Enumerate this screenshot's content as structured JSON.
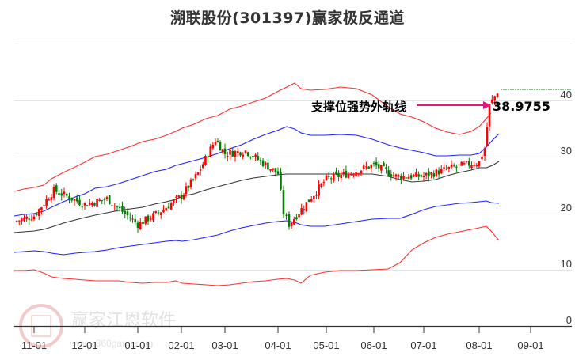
{
  "title": "溯联股份(301397)赢家极反通道",
  "colors": {
    "up": "#ff0000",
    "down": "#008000",
    "outer_band": "#ff0000",
    "inner_band": "#0000ff",
    "middle_line": "#000000",
    "annotation_arrow": "#e0197d",
    "grid": "#dddddd",
    "reference_line": "#008000"
  },
  "annotation": {
    "label": "支撑位强势外轨线",
    "value": "38.9755"
  },
  "watermark": {
    "brand": "赢家江恩软件",
    "url": "www.360gann.com",
    "seal_chars": [
      "江",
      "赢",
      "恩",
      "家"
    ]
  },
  "chart_data": {
    "type": "candlestick",
    "title": "溯联股份(301397)赢家极反通道",
    "xlabel": "",
    "ylabel": "",
    "ylim": [
      0,
      50
    ],
    "y_ticks": [
      0,
      10,
      20,
      30,
      40
    ],
    "x_ticks": [
      "11-01",
      "12-01",
      "01-01",
      "02-01",
      "03-01",
      "04-01",
      "05-01",
      "06-01",
      "07-01",
      "08-01",
      "09-01"
    ],
    "grid": true,
    "legend": "none",
    "annotation": {
      "text": "支撑位强势外轨线",
      "value": 38.9755
    },
    "reference_line": {
      "value": 41.5,
      "style": "dashed",
      "color": "#008000"
    },
    "series": [
      {
        "name": "Upper outer band (red)",
        "points": [
          [
            "10-20",
            25.5
          ],
          [
            "11-01",
            26
          ],
          [
            "11-15",
            28.5
          ],
          [
            "12-01",
            31
          ],
          [
            "12-15",
            33.5
          ],
          [
            "01-01",
            35.5
          ],
          [
            "02-01",
            37.5
          ],
          [
            "03-01",
            40.5
          ],
          [
            "03-20",
            43
          ],
          [
            "04-01",
            45.5
          ],
          [
            "04-10",
            41.5
          ],
          [
            "05-01",
            42
          ],
          [
            "06-01",
            38
          ],
          [
            "07-01",
            35
          ],
          [
            "08-01",
            35
          ],
          [
            "08-10",
            36.5
          ]
        ]
      },
      {
        "name": "Upper inner band (blue)",
        "points": [
          [
            "10-20",
            19.5
          ],
          [
            "11-01",
            20
          ],
          [
            "12-01",
            23
          ],
          [
            "01-01",
            26
          ],
          [
            "02-01",
            27.5
          ],
          [
            "03-01",
            31
          ],
          [
            "04-01",
            35.5
          ],
          [
            "05-01",
            35
          ],
          [
            "06-01",
            32
          ],
          [
            "07-01",
            30
          ],
          [
            "08-01",
            30.5
          ],
          [
            "08-10",
            34
          ]
        ]
      },
      {
        "name": "Middle line (black)",
        "points": [
          [
            "10-20",
            13
          ],
          [
            "11-01",
            13.5
          ],
          [
            "12-01",
            15.5
          ],
          [
            "01-01",
            18
          ],
          [
            "02-01",
            20
          ],
          [
            "03-01",
            23
          ],
          [
            "04-01",
            26.5
          ],
          [
            "05-01",
            27
          ],
          [
            "06-01",
            26
          ],
          [
            "07-01",
            25
          ],
          [
            "08-01",
            26.5
          ],
          [
            "08-10",
            28.5
          ]
        ]
      },
      {
        "name": "Lower inner band (blue)",
        "points": [
          [
            "10-20",
            13.2
          ],
          [
            "11-01",
            13.5
          ],
          [
            "12-01",
            14
          ],
          [
            "01-01",
            14.2
          ],
          [
            "02-01",
            14.8
          ],
          [
            "03-01",
            16.5
          ],
          [
            "04-01",
            18.5
          ],
          [
            "04-10",
            19.5
          ],
          [
            "05-01",
            20
          ],
          [
            "06-01",
            20.5
          ],
          [
            "07-01",
            20.5
          ],
          [
            "08-01",
            22.5
          ],
          [
            "08-10",
            21.5
          ]
        ]
      },
      {
        "name": "Lower outer band (red)",
        "points": [
          [
            "10-20",
            10
          ],
          [
            "11-01",
            10
          ],
          [
            "12-01",
            8
          ],
          [
            "01-01",
            7.5
          ],
          [
            "02-01",
            7
          ],
          [
            "03-01",
            7.5
          ],
          [
            "04-01",
            8
          ],
          [
            "04-10",
            7.5
          ],
          [
            "05-01",
            9
          ],
          [
            "06-01",
            11
          ],
          [
            "07-01",
            13
          ],
          [
            "08-01",
            17.5
          ],
          [
            "08-10",
            15
          ]
        ]
      },
      {
        "name": "Price (candlestick close approx.)",
        "points": [
          [
            "10-20",
            18.5
          ],
          [
            "11-01",
            19.5
          ],
          [
            "11-10",
            24
          ],
          [
            "12-01",
            21.5
          ],
          [
            "12-20",
            22.5
          ],
          [
            "01-01",
            18
          ],
          [
            "01-20",
            20
          ],
          [
            "02-01",
            23
          ],
          [
            "02-10",
            27
          ],
          [
            "02-20",
            33
          ],
          [
            "03-01",
            30.5
          ],
          [
            "03-15",
            31
          ],
          [
            "04-01",
            27
          ],
          [
            "04-08",
            20
          ],
          [
            "04-12",
            18
          ],
          [
            "05-01",
            26
          ],
          [
            "05-20",
            27
          ],
          [
            "06-01",
            28.5
          ],
          [
            "06-20",
            26.5
          ],
          [
            "07-01",
            26.5
          ],
          [
            "07-20",
            28
          ],
          [
            "08-01",
            29
          ],
          [
            "08-05",
            31.5
          ],
          [
            "08-08",
            39
          ],
          [
            "08-10",
            41.5
          ]
        ]
      }
    ]
  }
}
